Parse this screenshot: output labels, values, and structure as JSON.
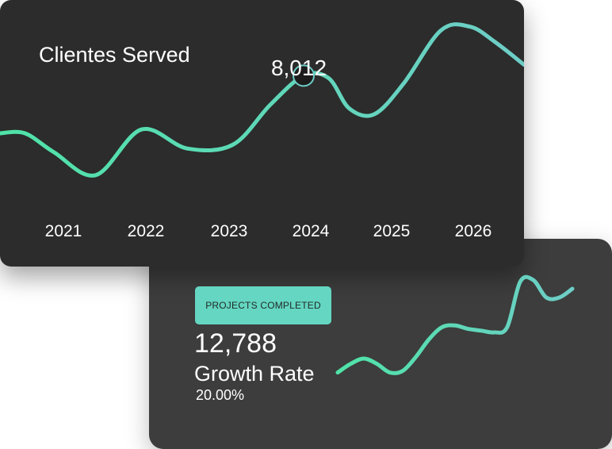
{
  "colors": {
    "line_start": "#4fe3a8",
    "line_end": "#6ecdc7",
    "marker_fill": "#1c1c1c",
    "badge": "#64d6c1"
  },
  "chart_data": [
    {
      "type": "line",
      "title": "Clientes Served",
      "categories": [
        "2021",
        "2022",
        "2023",
        "2024",
        "2025",
        "2026"
      ],
      "x": [
        2020.25,
        2020.55,
        2020.9,
        2021.4,
        2021.95,
        2022.5,
        2023.05,
        2023.5,
        2023.9,
        2024.2,
        2024.45,
        2024.75,
        2025.1,
        2025.55,
        2025.9,
        2026.2,
        2026.55
      ],
      "y": [
        6500,
        6500,
        6000,
        5400,
        6600,
        6100,
        6200,
        7250,
        8012,
        7950,
        7150,
        7000,
        7800,
        9200,
        9300,
        8900,
        8300
      ],
      "highlight": {
        "x": 2023.9,
        "label": "8,012"
      },
      "xlim": [
        2020.25,
        2026.55
      ],
      "ylim": [
        3000,
        10000
      ],
      "grid": false,
      "legend": "none"
    },
    {
      "type": "line",
      "x": [
        0,
        1,
        2,
        3,
        4,
        5,
        6,
        7,
        8,
        9,
        10,
        11,
        12,
        13,
        14,
        15,
        16,
        17,
        18
      ],
      "y": [
        12,
        17,
        20,
        17,
        12,
        13,
        21,
        31,
        38,
        39,
        37,
        36,
        35,
        38,
        64,
        65,
        55,
        55,
        60
      ],
      "xlim": [
        0,
        18
      ],
      "ylim": [
        0,
        70
      ],
      "grid": false,
      "legend": "none"
    }
  ],
  "stats": {
    "badge_label": "PROJECTS COMPLETED",
    "value": "12,788",
    "growth_label": "Growth Rate",
    "growth_value": "20.00%"
  }
}
